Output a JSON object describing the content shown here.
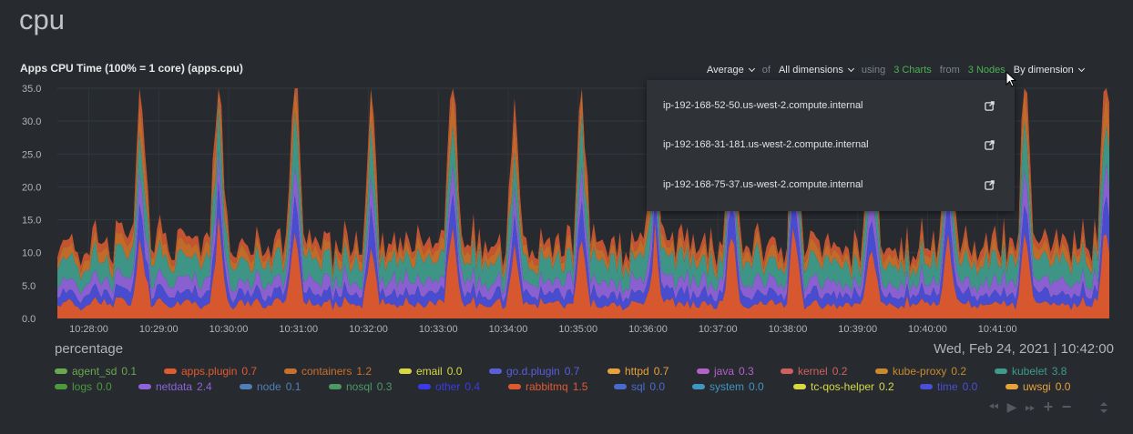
{
  "section_title": "cpu",
  "chart_title": "Apps CPU Time (100% = 1 core) (apps.cpu)",
  "toolbar": {
    "aggregation": "Average",
    "of": "of",
    "dimensions": "All dimensions",
    "using": "using",
    "charts": "3 Charts",
    "from": "from",
    "nodes": "3 Nodes",
    "group_by": "By dimension"
  },
  "nodes_dropdown": [
    "ip-192-168-52-50.us-west-2.compute.internal",
    "ip-192-168-31-181.us-west-2.compute.internal",
    "ip-192-168-75-37.us-west-2.compute.internal"
  ],
  "chart_data": {
    "type": "area",
    "stacked": true,
    "title": "Apps CPU Time (100% = 1 core) (apps.cpu)",
    "ylim": [
      0,
      35
    ],
    "y_ticks": [
      "35.0",
      "30.0",
      "25.0",
      "20.0",
      "15.0",
      "10.0",
      "5.0",
      "0.0"
    ],
    "x_ticks": [
      "10:28:00",
      "10:29:00",
      "10:30:00",
      "10:31:00",
      "10:32:00",
      "10:33:00",
      "10:34:00",
      "10:35:00",
      "10:36:00",
      "10:37:00",
      "10:38:00",
      "10:39:00",
      "10:40:00",
      "10:41:00"
    ],
    "spike_times_min": [
      0.75,
      1.85,
      2.95,
      4.05,
      5.2,
      6.1,
      7.05,
      8.1,
      9.2,
      10.1,
      11.2,
      12.3,
      13.4,
      14.55
    ],
    "spike_totals": [
      27,
      30,
      30,
      29,
      31,
      23,
      26,
      24,
      27,
      29,
      27,
      27,
      28,
      33
    ],
    "baseline_total": 11.5,
    "series": [
      {
        "name": "rabbitmq",
        "color": "#e05a2f",
        "base": 2.2,
        "spike": 12
      },
      {
        "name": "go.d.plugin",
        "color": "#4a4ed8",
        "base": 1.6,
        "spike": 4
      },
      {
        "name": "netdata",
        "color": "#8f63d9",
        "base": 1.8,
        "spike": 3
      },
      {
        "name": "kubelet",
        "color": "#3f9a8a",
        "base": 3.2,
        "spike": 4
      },
      {
        "name": "containers",
        "color": "#c96f2b",
        "base": 1.5,
        "spike": 5
      },
      {
        "name": "apps.plugin",
        "color": "#cc5533",
        "base": 1.2,
        "spike": 3
      }
    ]
  },
  "unit_label": "percentage",
  "timestamp": "Wed, Feb 24, 2021 | 10:42:00",
  "legend_rows": [
    [
      {
        "name": "agent_sd",
        "value": "0.1",
        "color": "#6aa84f"
      },
      {
        "name": "apps.plugin",
        "value": "0.7",
        "color": "#e05a2f"
      },
      {
        "name": "containers",
        "value": "1.2",
        "color": "#c96f2b"
      },
      {
        "name": "email",
        "value": "0.0",
        "color": "#d8d843"
      },
      {
        "name": "go.d.plugin",
        "value": "0.7",
        "color": "#5a5ed8"
      },
      {
        "name": "httpd",
        "value": "0.7",
        "color": "#e8a23a"
      },
      {
        "name": "java",
        "value": "0.3",
        "color": "#b360c9"
      },
      {
        "name": "kernel",
        "value": "0.2",
        "color": "#d06060"
      },
      {
        "name": "kube-proxy",
        "value": "0.2",
        "color": "#c98a2b"
      },
      {
        "name": "kubelet",
        "value": "3.8",
        "color": "#3f9a8a"
      }
    ],
    [
      {
        "name": "logs",
        "value": "0.0",
        "color": "#4c9a3c"
      },
      {
        "name": "netdata",
        "value": "2.4",
        "color": "#8f63d9"
      },
      {
        "name": "node",
        "value": "0.1",
        "color": "#4f7fb8"
      },
      {
        "name": "nosql",
        "value": "0.3",
        "color": "#4c9a63"
      },
      {
        "name": "other",
        "value": "0.4",
        "color": "#3a3ae8"
      },
      {
        "name": "rabbitmq",
        "value": "1.5",
        "color": "#e05a2f"
      },
      {
        "name": "sql",
        "value": "0.0",
        "color": "#4a6ad0"
      },
      {
        "name": "system",
        "value": "0.0",
        "color": "#3f96c0"
      },
      {
        "name": "tc-qos-helper",
        "value": "0.2",
        "color": "#d8d843"
      },
      {
        "name": "time",
        "value": "0.0",
        "color": "#4a4ed8"
      },
      {
        "name": "uwsgi",
        "value": "0.0",
        "color": "#e8a23a"
      }
    ]
  ],
  "nav_buttons": [
    "rewind",
    "play",
    "fast-forward",
    "zoom-in",
    "zoom-out"
  ]
}
